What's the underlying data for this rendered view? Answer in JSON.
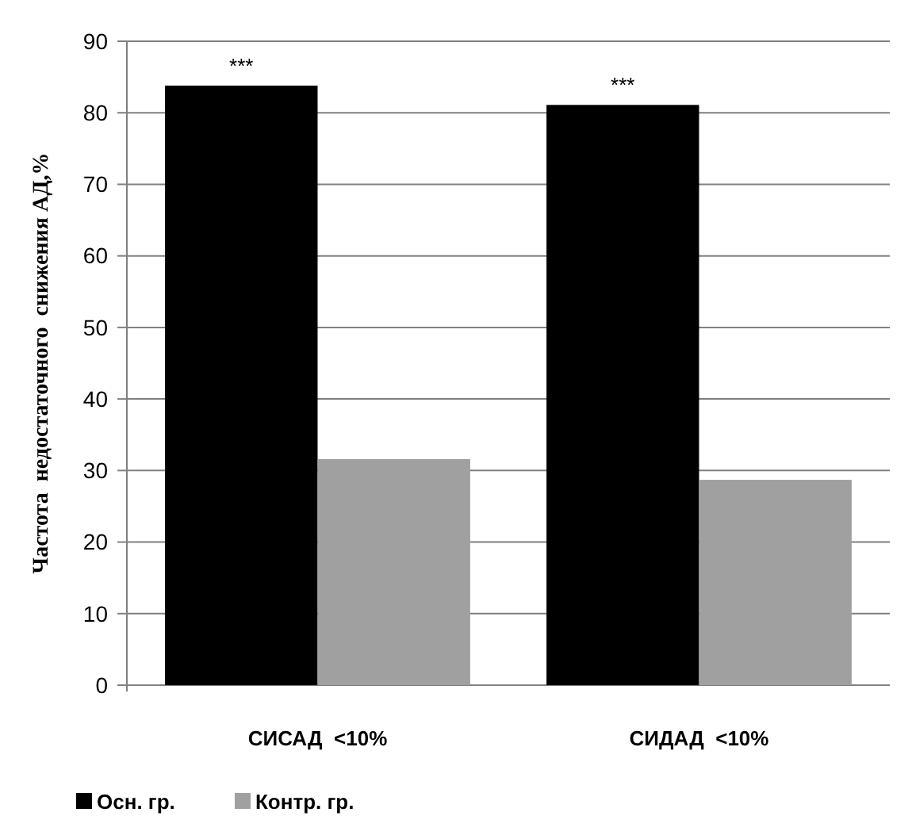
{
  "chart_data": {
    "type": "bar",
    "ylabel": "Частота  недостаточного  снижения АД,%",
    "categories": [
      "СИСАД  <10%",
      "СИДАД  <10%"
    ],
    "series": [
      {
        "name": "Осн. гр.",
        "color": "#000000",
        "values": [
          83.8,
          81.1
        ]
      },
      {
        "name": "Контр. гр.",
        "color": "#a0a0a0",
        "values": [
          31.6,
          28.7
        ]
      }
    ],
    "ylim": [
      0,
      90
    ],
    "yticks": [
      0,
      10,
      20,
      30,
      40,
      50,
      60,
      70,
      80,
      90
    ],
    "grid": "y",
    "legend": "bottom left",
    "annotations": [
      "***",
      "***"
    ]
  }
}
